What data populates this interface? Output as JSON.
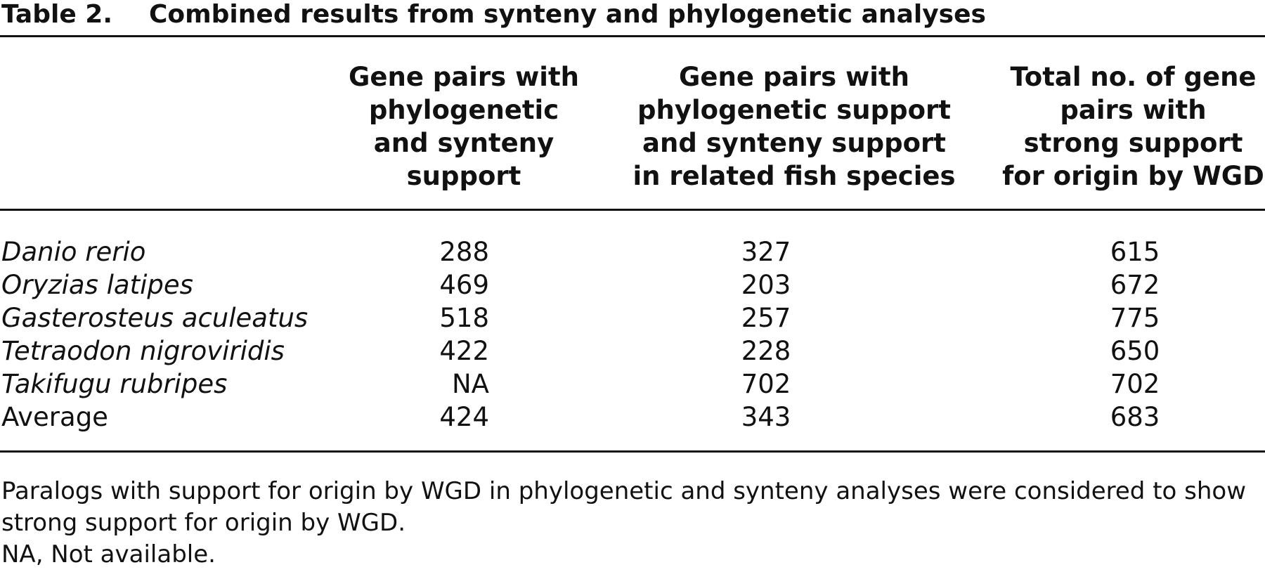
{
  "table": {
    "label": "Table 2.",
    "title": "Combined results from synteny and phylogenetic analyses",
    "columns": [
      "Gene pairs with\nphylogenetic\nand synteny\nsupport",
      "Gene pairs with\nphylogenetic support\nand synteny support\nin related fish species",
      "Total no. of gene\npairs with\nstrong support\nfor origin by WGD"
    ],
    "rows": [
      {
        "species": "Danio rerio",
        "italic": true,
        "values": [
          "288",
          "327",
          "615"
        ]
      },
      {
        "species": "Oryzias latipes",
        "italic": true,
        "values": [
          "469",
          "203",
          "672"
        ]
      },
      {
        "species": "Gasterosteus aculeatus",
        "italic": true,
        "values": [
          "518",
          "257",
          "775"
        ]
      },
      {
        "species": "Tetraodon nigroviridis",
        "italic": true,
        "values": [
          "422",
          "228",
          "650"
        ]
      },
      {
        "species": "Takifugu rubripes",
        "italic": true,
        "values": [
          "NA",
          "702",
          "702"
        ]
      },
      {
        "species": "Average",
        "italic": false,
        "values": [
          "424",
          "343",
          "683"
        ]
      }
    ],
    "footnotes": [
      "Paralogs with support for origin by WGD in phylogenetic and synteny analyses were considered to show strong support for origin by WGD.",
      "NA, Not available."
    ]
  }
}
